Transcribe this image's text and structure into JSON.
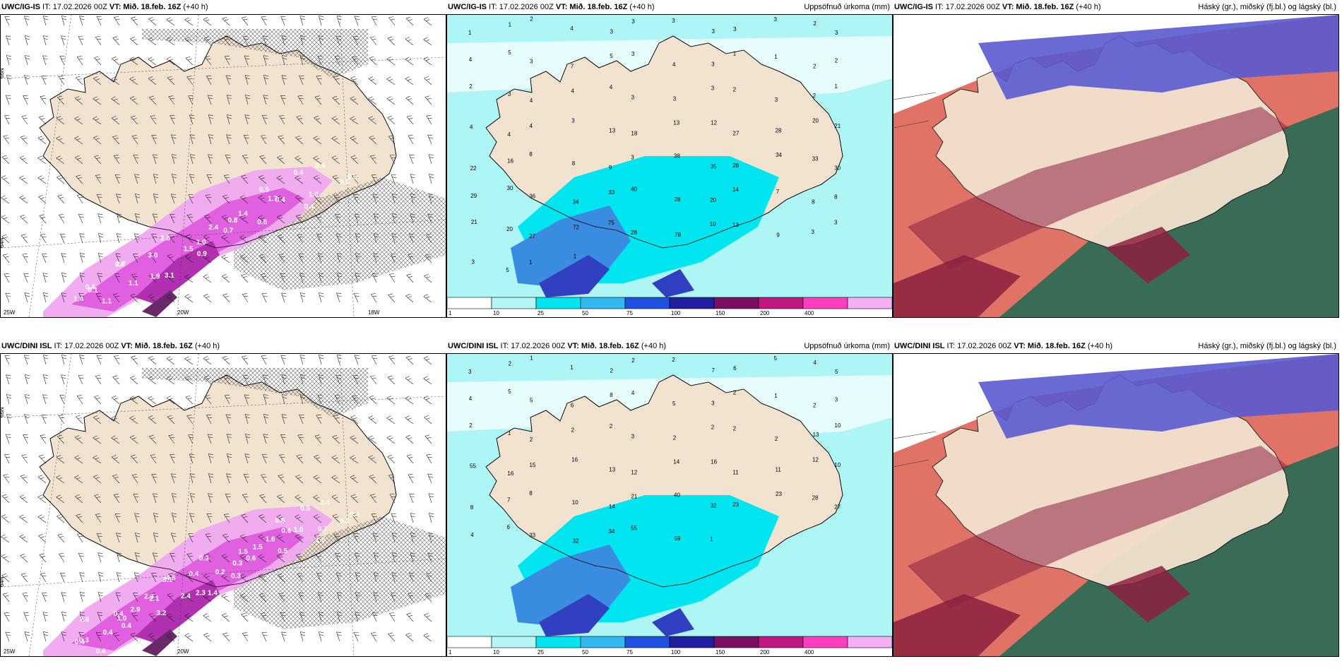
{
  "panels": [
    {
      "id": "p1",
      "source": "UWC/IG-IS",
      "it": " IT: 17.02.2026 00Z ",
      "vt": "VT: Mið. 18.feb. 16Z",
      "lead": " (+40 h)",
      "right_title": "",
      "type": "wind-precip",
      "lat_labels": [
        "66N",
        "64N"
      ],
      "lon_labels": [
        "25W",
        "20W",
        "18W"
      ],
      "values": [
        "0.5",
        "0.5",
        "0.4",
        "0.4",
        "1.0",
        "0.4",
        "1.7",
        "0.5",
        "0.4",
        "0.6",
        "0.7",
        "0.8",
        "1.4",
        "2.4",
        "1.5",
        "0.9",
        "1.0",
        "2.0",
        "3.0",
        "3.1",
        "1.9",
        "0.6",
        "2.7",
        "1.1",
        "1.1",
        "1.4",
        "0.4",
        "0.1"
      ]
    },
    {
      "id": "p2",
      "source": "UWC/IG-IS",
      "it": " IT: 17.02.2026 00Z ",
      "vt": "VT: Mið. 18.feb. 16Z",
      "lead": " (+40 h)",
      "right_title": "Uppsöfnuð úrkoma (mm)",
      "type": "accum",
      "values": [
        "1",
        "1",
        "2",
        "4",
        "3",
        "3",
        "3",
        "3",
        "3",
        "3",
        "2",
        "3",
        "4",
        "5",
        "3",
        "7",
        "5",
        "3",
        "4",
        "3",
        "1",
        "1",
        "2",
        "2",
        "2",
        "3",
        "4",
        "4",
        "4",
        "3",
        "3",
        "3",
        "2",
        "3",
        "2",
        "1",
        "4",
        "4",
        "4",
        "3",
        "13",
        "18",
        "13",
        "12",
        "27",
        "28",
        "20",
        "21",
        "22",
        "16",
        "8",
        "8",
        "9",
        "3",
        "38",
        "35",
        "28",
        "34",
        "33",
        "30",
        "29",
        "30",
        "36",
        "34",
        "33",
        "40",
        "28",
        "20",
        "14",
        "7",
        "8",
        "8",
        "21",
        "20",
        "27",
        "72",
        "75",
        "28",
        "78",
        "10",
        "13",
        "9",
        "3",
        "3",
        "3",
        "5",
        "1",
        "1"
      ],
      "legend": [
        "1",
        "10",
        "25",
        "50",
        "75",
        "100",
        "150",
        "200",
        "400"
      ]
    },
    {
      "id": "p3",
      "source": "UWC/IG-IS",
      "it": " IT: 17.02.2026 00Z ",
      "vt": "VT: Mið. 18.feb. 16Z",
      "lead": " (+40 h)",
      "right_title": "Háský (gr.), miðský (fj.bl.) og lágský (bl.)",
      "type": "cloud"
    },
    {
      "id": "p4",
      "source": "UWC/DINI ISL",
      "it": " IT: 17.02.2026 00Z ",
      "vt": "VT: Mið. 18.feb. 16Z",
      "lead": " (+40 h)",
      "right_title": "",
      "type": "wind-precip",
      "lat_labels": [
        "66N",
        "64N"
      ],
      "lon_labels": [
        "25W",
        "20W"
      ],
      "values": [
        "0.3",
        "0.4",
        "0.4",
        "0.5",
        "0.7",
        "1.0",
        "0.6",
        "0.6",
        "1.0",
        "0.5",
        "0.6",
        "1.5",
        "1.6",
        "1.5",
        "0.2",
        "0.3",
        "0.3",
        "0.3",
        "0.4",
        "1.4",
        "2.3",
        "3.1",
        "4.8",
        "2.4",
        "3.2",
        "2.9",
        "2.3",
        "2.1",
        "1.0",
        "0.4",
        "0.4",
        "0.4",
        "2.6",
        "0.3",
        "0.4",
        "0.4"
      ]
    },
    {
      "id": "p5",
      "source": "UWC/DINI ISL",
      "it": " IT: 17.02.2026 00Z ",
      "vt": "VT: Mið. 18.feb. 16Z",
      "lead": " (+40 h)",
      "right_title": "Uppsöfnuð úrkoma (mm)",
      "type": "accum",
      "values": [
        "3",
        "2",
        "1",
        "1",
        "2",
        "2",
        "2",
        "7",
        "6",
        "5",
        "4",
        "5",
        "4",
        "5",
        "5",
        "6",
        "8",
        "4",
        "5",
        "3",
        "2",
        "1",
        "2",
        "3",
        "2",
        "1",
        "2",
        "2",
        "2",
        "3",
        "2",
        "2",
        "2",
        "2",
        "13",
        "10",
        "55",
        "16",
        "15",
        "16",
        "13",
        "12",
        "14",
        "16",
        "11",
        "11",
        "12",
        "10",
        "8",
        "7",
        "8",
        "10",
        "14",
        "21",
        "40",
        "32",
        "23",
        "23",
        "28",
        "27",
        "4",
        "6",
        "33",
        "32",
        "34",
        "55",
        "59",
        "1"
      ],
      "legend": [
        "1",
        "10",
        "25",
        "50",
        "75",
        "100",
        "150",
        "200",
        "400"
      ]
    },
    {
      "id": "p6",
      "source": "UWC/DINI ISL",
      "it": " IT: 17.02.2026 00Z ",
      "vt": "VT: Mið. 18.feb. 16Z",
      "lead": " (+40 h)",
      "right_title": "Háský (gr.), miðský (fj.bl.) og lágský (bl.)",
      "type": "cloud"
    }
  ],
  "colors": {
    "land": "#f2e2d0",
    "hatch": "#555555",
    "precip_light": "#f0a8f0",
    "precip_mid": "#e060e0",
    "precip_strong": "#b030b0",
    "precip_dark": "#6a2a6a",
    "accum_low": "#aef5f5",
    "accum_mid": "#00e5f0",
    "accum_high": "#3a8ce0",
    "accum_top": "#3040c0",
    "cloud_high": "#2f6b55",
    "cloud_mid": "#8c2040",
    "cloud_low": "#5a5ad0",
    "cloud_low_light": "#d85040"
  },
  "legend_colors": [
    "#ffffff",
    "#b4f5f5",
    "#00e5f0",
    "#30b8f0",
    "#2050e0",
    "#2020a0",
    "#7a1060",
    "#c01880",
    "#ff3ec0",
    "#f5b0f5"
  ]
}
